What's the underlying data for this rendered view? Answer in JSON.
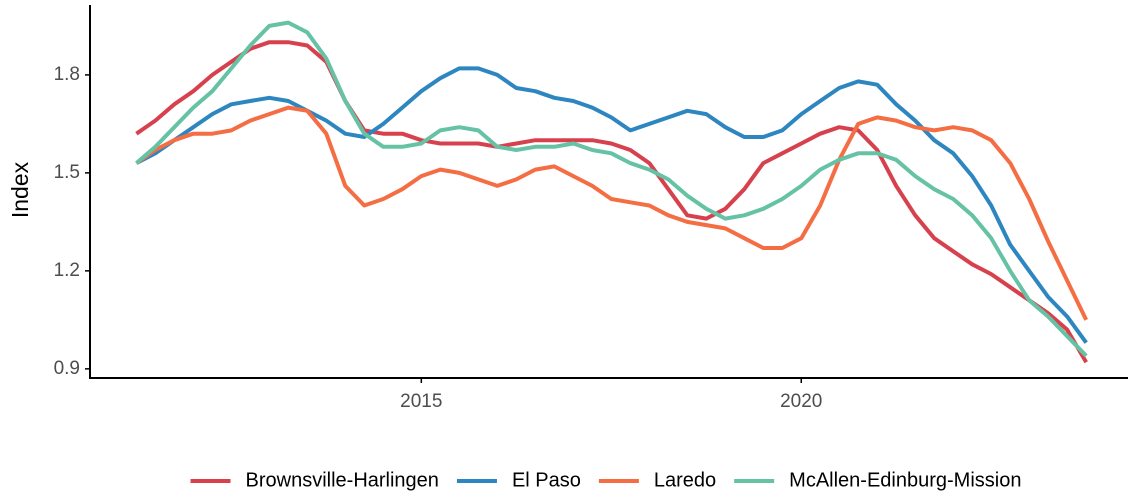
{
  "chart_data": {
    "type": "line",
    "y_label": "Index",
    "x": [
      2011.25,
      2011.5,
      2011.75,
      2012,
      2012.25,
      2012.5,
      2012.75,
      2013,
      2013.25,
      2013.5,
      2013.75,
      2014,
      2014.25,
      2014.5,
      2014.75,
      2015,
      2015.25,
      2015.5,
      2015.75,
      2016,
      2016.25,
      2016.5,
      2016.75,
      2017,
      2017.25,
      2017.5,
      2017.75,
      2018,
      2018.25,
      2018.5,
      2018.75,
      2019,
      2019.25,
      2019.5,
      2019.75,
      2020,
      2020.25,
      2020.5,
      2020.75,
      2021,
      2021.25,
      2021.5,
      2021.75,
      2022,
      2022.25,
      2022.5,
      2022.75,
      2023,
      2023.25,
      2023.5,
      2023.75
    ],
    "series": [
      {
        "name": "Brownsville-Harlingen",
        "color": "#d7414e",
        "values": [
          1.62,
          1.66,
          1.71,
          1.75,
          1.8,
          1.84,
          1.88,
          1.9,
          1.9,
          1.89,
          1.84,
          1.72,
          1.63,
          1.62,
          1.62,
          1.6,
          1.59,
          1.59,
          1.59,
          1.58,
          1.59,
          1.6,
          1.6,
          1.6,
          1.6,
          1.59,
          1.57,
          1.53,
          1.45,
          1.37,
          1.36,
          1.39,
          1.45,
          1.53,
          1.56,
          1.59,
          1.62,
          1.64,
          1.63,
          1.57,
          1.46,
          1.37,
          1.3,
          1.26,
          1.22,
          1.19,
          1.15,
          1.11,
          1.07,
          1.02,
          0.92
        ]
      },
      {
        "name": "El Paso",
        "color": "#2e86c1",
        "values": [
          1.53,
          1.56,
          1.6,
          1.64,
          1.68,
          1.71,
          1.72,
          1.73,
          1.72,
          1.69,
          1.66,
          1.62,
          1.61,
          1.65,
          1.7,
          1.75,
          1.79,
          1.82,
          1.82,
          1.8,
          1.76,
          1.75,
          1.73,
          1.72,
          1.7,
          1.67,
          1.63,
          1.65,
          1.67,
          1.69,
          1.68,
          1.64,
          1.61,
          1.61,
          1.63,
          1.68,
          1.72,
          1.76,
          1.78,
          1.77,
          1.71,
          1.66,
          1.6,
          1.56,
          1.49,
          1.4,
          1.28,
          1.2,
          1.12,
          1.06,
          0.98
        ]
      },
      {
        "name": "Laredo",
        "color": "#f46d43",
        "values": [
          1.53,
          1.57,
          1.6,
          1.62,
          1.62,
          1.63,
          1.66,
          1.68,
          1.7,
          1.69,
          1.62,
          1.46,
          1.4,
          1.42,
          1.45,
          1.49,
          1.51,
          1.5,
          1.48,
          1.46,
          1.48,
          1.51,
          1.52,
          1.49,
          1.46,
          1.42,
          1.41,
          1.4,
          1.37,
          1.35,
          1.34,
          1.33,
          1.3,
          1.27,
          1.27,
          1.3,
          1.4,
          1.54,
          1.65,
          1.67,
          1.66,
          1.64,
          1.63,
          1.64,
          1.63,
          1.6,
          1.53,
          1.42,
          1.29,
          1.17,
          1.05
        ]
      },
      {
        "name": "McAllen-Edinburg-Mission",
        "color": "#66c2a5",
        "values": [
          1.53,
          1.58,
          1.64,
          1.7,
          1.75,
          1.82,
          1.89,
          1.95,
          1.96,
          1.93,
          1.85,
          1.72,
          1.62,
          1.58,
          1.58,
          1.59,
          1.63,
          1.64,
          1.63,
          1.58,
          1.57,
          1.58,
          1.58,
          1.59,
          1.57,
          1.56,
          1.53,
          1.51,
          1.48,
          1.43,
          1.39,
          1.36,
          1.37,
          1.39,
          1.42,
          1.46,
          1.51,
          1.54,
          1.56,
          1.56,
          1.54,
          1.49,
          1.45,
          1.42,
          1.37,
          1.3,
          1.2,
          1.11,
          1.06,
          1.0,
          0.94
        ]
      }
    ],
    "xlim": [
      2010.64,
      2024.3
    ],
    "xticks": [
      2015,
      2020
    ],
    "ylim": [
      0.872,
      2.014
    ],
    "yticks": [
      0.9,
      1.2,
      1.5,
      1.8
    ],
    "grid": false,
    "legend": "bottom"
  }
}
